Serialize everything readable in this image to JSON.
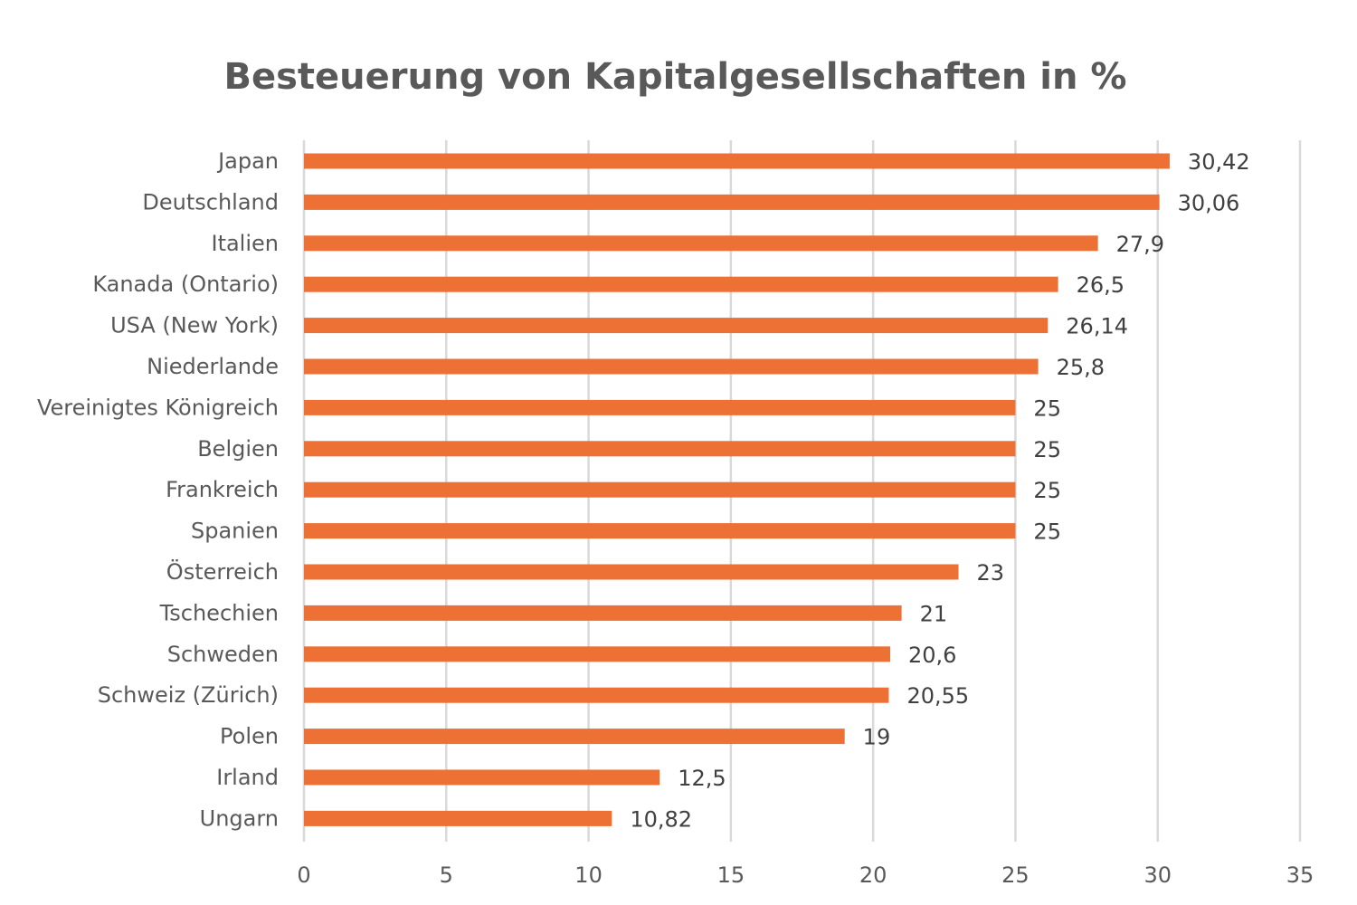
{
  "chart_data": {
    "type": "bar",
    "orientation": "horizontal",
    "title": "Besteuerung von Kapitalgesellschaften in %",
    "xlabel": "",
    "ylabel": "",
    "xlim": [
      0,
      35
    ],
    "x_ticks": [
      0,
      5,
      10,
      15,
      20,
      25,
      30,
      35
    ],
    "grid": true,
    "legend": "none",
    "bar_color": "#ED7035",
    "categories": [
      "Japan",
      "Deutschland",
      "Italien",
      "Kanada (Ontario)",
      "USA (New York)",
      "Niederlande",
      "Vereinigtes Königreich",
      "Belgien",
      "Frankreich",
      "Spanien",
      "Österreich",
      "Tschechien",
      "Schweden",
      "Schweiz (Zürich)",
      "Polen",
      "Irland",
      "Ungarn"
    ],
    "values": [
      30.42,
      30.06,
      27.9,
      26.5,
      26.14,
      25.8,
      25,
      25,
      25,
      25,
      23,
      21,
      20.6,
      20.55,
      19,
      12.5,
      10.82
    ],
    "data_labels": [
      "30,42",
      "30,06",
      "27,9",
      "26,5",
      "26,14",
      "25,8",
      "25",
      "25",
      "25",
      "25",
      "23",
      "21",
      "20,6",
      "20,55",
      "19",
      "12,5",
      "10,82"
    ]
  }
}
